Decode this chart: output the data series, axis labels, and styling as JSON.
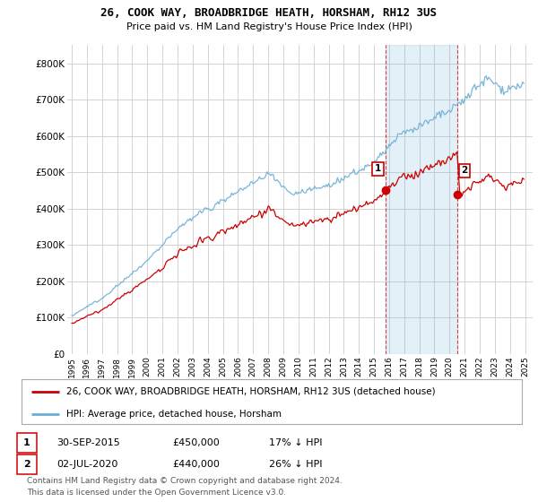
{
  "title": "26, COOK WAY, BROADBRIDGE HEATH, HORSHAM, RH12 3US",
  "subtitle": "Price paid vs. HM Land Registry's House Price Index (HPI)",
  "hpi_color": "#6baed6",
  "price_color": "#cc0000",
  "shade_color": "#ddeeff",
  "background_color": "#ffffff",
  "grid_color": "#cccccc",
  "ylim": [
    0,
    850000
  ],
  "yticks": [
    0,
    100000,
    200000,
    300000,
    400000,
    500000,
    600000,
    700000,
    800000
  ],
  "ytick_labels": [
    "£0",
    "£100K",
    "£200K",
    "£300K",
    "£400K",
    "£500K",
    "£600K",
    "£700K",
    "£800K"
  ],
  "footer": "Contains HM Land Registry data © Crown copyright and database right 2024.\nThis data is licensed under the Open Government Licence v3.0.",
  "legend_label_red": "26, COOK WAY, BROADBRIDGE HEATH, HORSHAM, RH12 3US (detached house)",
  "legend_label_blue": "HPI: Average price, detached house, Horsham",
  "point1_date": "30-SEP-2015",
  "point1_price": "£450,000",
  "point1_hpi": "17% ↓ HPI",
  "point2_date": "02-JUL-2020",
  "point2_price": "£440,000",
  "point2_hpi": "26% ↓ HPI",
  "point1_x": 2015.75,
  "point1_y": 450000,
  "point2_x": 2020.5,
  "point2_y": 440000,
  "xlim_left": 1994.7,
  "xlim_right": 2025.5
}
